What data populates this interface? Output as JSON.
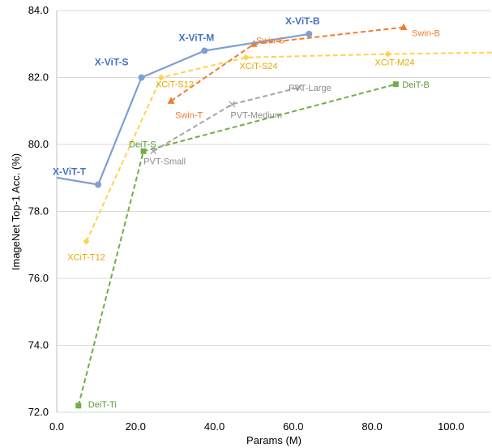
{
  "chart_data": {
    "type": "line",
    "xlabel": "Params (M)",
    "ylabel": "ImageNet Top-1 Acc. (%)",
    "xlim": [
      0,
      110
    ],
    "ylim": [
      72,
      84
    ],
    "x_ticks": [
      "0.0",
      "20.0",
      "40.0",
      "60.0",
      "80.0",
      "100.0"
    ],
    "y_ticks": [
      "72.0",
      "74.0",
      "76.0",
      "78.0",
      "80.0",
      "82.0",
      "84.0"
    ],
    "grid": "horizontal",
    "series": [
      {
        "name": "X-ViT",
        "color": "#7f9fcf",
        "dash": "solid",
        "marker": "circle",
        "bold_labels": true,
        "points": [
          {
            "x": -2,
            "y": 79.05,
            "label": ""
          },
          {
            "x": 10.5,
            "y": 78.8,
            "label": "X-ViT-T"
          },
          {
            "x": 21.5,
            "y": 82.0,
            "label": "X-ViT-S"
          },
          {
            "x": 37.5,
            "y": 82.8,
            "label": "X-ViT-M"
          },
          {
            "x": 64,
            "y": 83.3,
            "label": "X-ViT-B"
          }
        ]
      },
      {
        "name": "XCiT",
        "color": "#ffd24d",
        "label_color": "#e6a800",
        "dash": "dashed",
        "marker": "diamond",
        "points": [
          {
            "x": 7.5,
            "y": 77.1,
            "label": "XCiT-T12"
          },
          {
            "x": 26.5,
            "y": 82.0,
            "label": "XCiT-S12"
          },
          {
            "x": 48,
            "y": 82.6,
            "label": "XCiT-S24"
          },
          {
            "x": 84,
            "y": 82.7,
            "label": "XCiT-M24"
          },
          {
            "x": 112,
            "y": 82.75,
            "label": ""
          }
        ]
      },
      {
        "name": "Swin",
        "color": "#ed7d31",
        "dash": "dashed",
        "marker": "triangle",
        "points": [
          {
            "x": 29,
            "y": 81.3,
            "label": "Swin-T"
          },
          {
            "x": 50,
            "y": 83.0,
            "label": "Swin-S"
          },
          {
            "x": 88,
            "y": 83.5,
            "label": "Swin-B"
          }
        ]
      },
      {
        "name": "PVT",
        "color": "#a5a5a5",
        "label_color": "#8c8c8c",
        "dash": "dashed",
        "marker": "x",
        "points": [
          {
            "x": 24.5,
            "y": 79.8,
            "label": "PVT-Small"
          },
          {
            "x": 44.5,
            "y": 81.2,
            "label": "PVT-Medium"
          },
          {
            "x": 61.5,
            "y": 81.7,
            "label": "PVT-Large"
          }
        ]
      },
      {
        "name": "DeiT",
        "color": "#70ad47",
        "label_color": "#5b9a36",
        "dash": "dashed",
        "marker": "square",
        "points": [
          {
            "x": 5.5,
            "y": 72.2,
            "label": "DeiT-Ti"
          },
          {
            "x": 22,
            "y": 79.8,
            "label": "DeiT-S"
          },
          {
            "x": 86,
            "y": 81.8,
            "label": "DeiT-B"
          }
        ]
      }
    ]
  }
}
